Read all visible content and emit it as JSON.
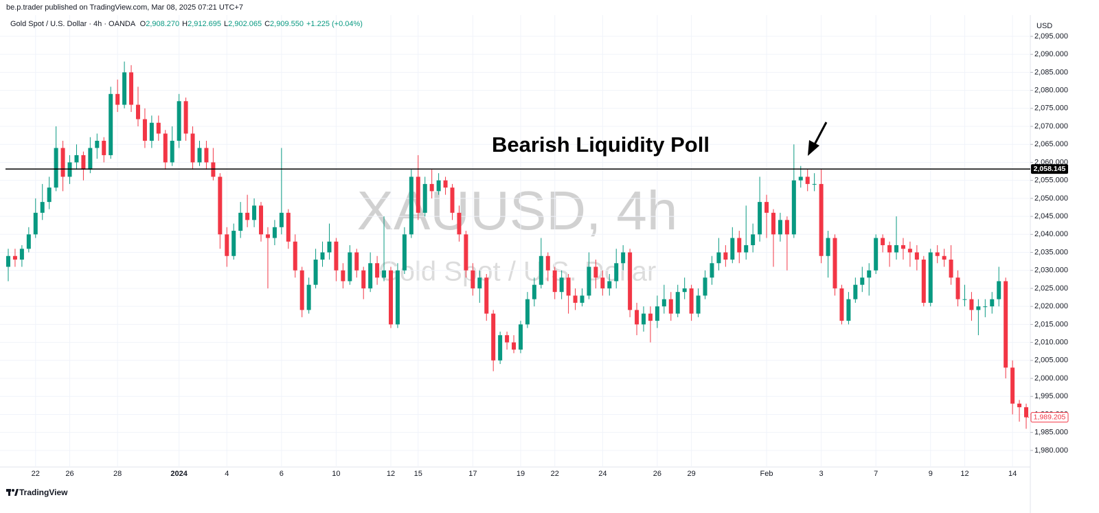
{
  "header": "be.p.trader published on TradingView.com, Mar 08, 2025 07:21 UTC+7",
  "legend": {
    "symbol": "Gold Spot / U.S. Dollar · 4h · OANDA",
    "fields": [
      {
        "label": "O",
        "value": "2,908.270"
      },
      {
        "label": "H",
        "value": "2,912.695"
      },
      {
        "label": "L",
        "value": "2,902.065"
      },
      {
        "label": "C",
        "value": "2,909.550"
      }
    ],
    "change": "+1.225 (+0.04%)"
  },
  "footer": "TradingView",
  "chart_data": {
    "type": "candlestick",
    "watermark": "XAUUSD, 4h",
    "watermark_subtitle": "Gold Spot / U.S. Dollar",
    "currency": "USD",
    "annotation": "Bearish Liquidity Poll",
    "level": {
      "value": 2058.145,
      "label": "2,058.145"
    },
    "last_price_label": "1,989.205",
    "up_color": "#089981",
    "down_color": "#f23645",
    "grid": true,
    "ylim": [
      1975.4,
      2100.9
    ],
    "yticks": [
      {
        "value": 2095,
        "label": "2,095.000"
      },
      {
        "value": 2090,
        "label": "2,090.000"
      },
      {
        "value": 2085,
        "label": "2,085.000"
      },
      {
        "value": 2080,
        "label": "2,080.000"
      },
      {
        "value": 2075,
        "label": "2,075.000"
      },
      {
        "value": 2070,
        "label": "2,070.000"
      },
      {
        "value": 2065,
        "label": "2,065.000"
      },
      {
        "value": 2060,
        "label": "2,060.000"
      },
      {
        "value": 2055,
        "label": "2,055.000"
      },
      {
        "value": 2050,
        "label": "2,050.000"
      },
      {
        "value": 2045,
        "label": "2,045.000"
      },
      {
        "value": 2040,
        "label": "2,040.000"
      },
      {
        "value": 2035,
        "label": "2,035.000"
      },
      {
        "value": 2030,
        "label": "2,030.000"
      },
      {
        "value": 2025,
        "label": "2,025.000"
      },
      {
        "value": 2020,
        "label": "2,020.000"
      },
      {
        "value": 2015,
        "label": "2,015.000"
      },
      {
        "value": 2010,
        "label": "2,010.000"
      },
      {
        "value": 2005,
        "label": "2,005.000"
      },
      {
        "value": 2000,
        "label": "2,000.000"
      },
      {
        "value": 1995,
        "label": "1,995.000"
      },
      {
        "value": 1990,
        "label": "1,990.000"
      },
      {
        "value": 1985,
        "label": "1,985.000"
      },
      {
        "value": 1980,
        "label": "1,980.000"
      }
    ],
    "categories": [
      null,
      null,
      null,
      null,
      "22",
      null,
      null,
      null,
      null,
      "26",
      null,
      null,
      null,
      null,
      null,
      null,
      "28",
      null,
      null,
      null,
      null,
      null,
      null,
      null,
      null,
      "2024",
      null,
      null,
      null,
      null,
      null,
      null,
      "4",
      null,
      null,
      null,
      null,
      null,
      null,
      null,
      "6",
      null,
      null,
      null,
      null,
      null,
      null,
      null,
      "10",
      null,
      null,
      null,
      null,
      null,
      null,
      null,
      "12",
      null,
      null,
      null,
      "15",
      null,
      null,
      null,
      null,
      null,
      null,
      null,
      "17",
      null,
      null,
      null,
      null,
      null,
      null,
      "19",
      null,
      null,
      null,
      null,
      "22",
      null,
      null,
      null,
      null,
      null,
      null,
      "24",
      null,
      null,
      null,
      null,
      null,
      null,
      null,
      "26",
      null,
      null,
      null,
      null,
      "29",
      null,
      null,
      null,
      null,
      null,
      null,
      null,
      null,
      null,
      null,
      "Feb",
      null,
      null,
      null,
      null,
      null,
      null,
      null,
      "3",
      null,
      null,
      null,
      null,
      null,
      null,
      null,
      "7",
      null,
      null,
      null,
      null,
      null,
      null,
      null,
      "9",
      null,
      null,
      null,
      null,
      "12",
      null,
      null,
      null,
      null,
      null,
      null,
      "14",
      null,
      null
    ],
    "open": [
      2031,
      2034,
      2033,
      2036,
      2040,
      2046,
      2049,
      2053,
      2064,
      2056,
      2060,
      2062,
      2058,
      2064,
      2066,
      2062,
      2079,
      2076,
      2085,
      2076,
      2072,
      2066,
      2071,
      2068,
      2060,
      2066,
      2077,
      2068,
      2060,
      2064,
      2060,
      2056,
      2040,
      2034,
      2041,
      2046,
      2044,
      2048,
      2040,
      2039,
      2042,
      2046,
      2038,
      2030,
      2019,
      2026,
      2033,
      2035,
      2038,
      2030,
      2027,
      2035,
      2030,
      2025,
      2032,
      2028,
      2030,
      2015,
      2030,
      2040,
      2056,
      2046,
      2054,
      2052,
      2055,
      2053,
      2046,
      2040,
      2030,
      2025,
      2028,
      2018,
      2005,
      2012,
      2010,
      2008,
      2015,
      2022,
      2026,
      2034,
      2030,
      2024,
      2028,
      2023,
      2021,
      2023,
      2031,
      2028,
      2025,
      2027,
      2032,
      2035,
      2019,
      2015,
      2018,
      2016,
      2020,
      2022,
      2018,
      2024,
      2025,
      2018,
      2023,
      2028,
      2032,
      2035,
      2033,
      2039,
      2035,
      2037,
      2040,
      2049,
      2046,
      2040,
      2044,
      2040,
      2055,
      2056,
      2054,
      2054,
      2034,
      2039,
      2025,
      2016,
      2022,
      2026,
      2028,
      2030,
      2039,
      2037,
      2035,
      2037,
      2036,
      2035,
      2033,
      2021,
      2035,
      2034,
      2033,
      2028,
      2022,
      2022,
      2019,
      2020,
      2020,
      2022,
      2027,
      2003,
      1993,
      1992
    ],
    "high": [
      2036,
      2036,
      2037,
      2042,
      2050,
      2054,
      2056,
      2070,
      2066,
      2062,
      2065,
      2063,
      2067,
      2068,
      2067,
      2081,
      2083,
      2088,
      2087,
      2081,
      2075,
      2073,
      2073,
      2069,
      2070,
      2079,
      2078,
      2070,
      2066,
      2066,
      2064,
      2057,
      2042,
      2043,
      2049,
      2051,
      2050,
      2049,
      2042,
      2044,
      2064,
      2047,
      2040,
      2031,
      2028,
      2036,
      2038,
      2043,
      2039,
      2032,
      2037,
      2036,
      2031,
      2035,
      2034,
      2045,
      2031,
      2032,
      2042,
      2058,
      2062,
      2056,
      2058,
      2057,
      2056,
      2054,
      2048,
      2041,
      2032,
      2030,
      2029,
      2019,
      2013,
      2013,
      2012,
      2016,
      2024,
      2028,
      2039,
      2035,
      2031,
      2030,
      2029,
      2025,
      2025,
      2035,
      2033,
      2030,
      2029,
      2036,
      2037,
      2036,
      2021,
      2020,
      2020,
      2023,
      2026,
      2024,
      2026,
      2028,
      2026,
      2025,
      2030,
      2034,
      2039,
      2037,
      2042,
      2041,
      2048,
      2043,
      2056,
      2051,
      2047,
      2046,
      2045,
      2065,
      2059,
      2058,
      2057,
      2058,
      2041,
      2040,
      2026,
      2024,
      2028,
      2031,
      2032,
      2040,
      2040,
      2038,
      2045,
      2039,
      2038,
      2037,
      2034,
      2036,
      2037,
      2036,
      2037,
      2030,
      2026,
      2024,
      2022,
      2022,
      2024,
      2031,
      2028,
      2005,
      1994,
      1993
    ],
    "low": [
      2027,
      2031,
      2031,
      2035,
      2039,
      2044,
      2047,
      2052,
      2052,
      2054,
      2058,
      2055,
      2057,
      2061,
      2060,
      2061,
      2074,
      2075,
      2074,
      2070,
      2064,
      2064,
      2066,
      2058,
      2059,
      2064,
      2066,
      2058,
      2059,
      2058,
      2055,
      2036,
      2031,
      2033,
      2039,
      2042,
      2042,
      2038,
      2025,
      2037,
      2040,
      2036,
      2028,
      2017,
      2018,
      2025,
      2031,
      2033,
      2027,
      2025,
      2026,
      2028,
      2022,
      2024,
      2026,
      2027,
      2014,
      2014,
      2029,
      2039,
      2044,
      2045,
      2050,
      2051,
      2051,
      2044,
      2038,
      2028,
      2023,
      2021,
      2016,
      2002,
      2004,
      2008,
      2007,
      2007,
      2014,
      2020,
      2025,
      2027,
      2022,
      2022,
      2018,
      2019,
      2020,
      2022,
      2025,
      2023,
      2023,
      2025,
      2030,
      2017,
      2012,
      2013,
      2010,
      2014,
      2018,
      2016,
      2017,
      2022,
      2016,
      2017,
      2022,
      2026,
      2030,
      2031,
      2032,
      2032,
      2033,
      2035,
      2038,
      2039,
      2031,
      2038,
      2030,
      2039,
      2053,
      2052,
      2052,
      2032,
      2028,
      2023,
      2015,
      2015,
      2021,
      2024,
      2023,
      2029,
      2035,
      2031,
      2033,
      2033,
      2031,
      2030,
      2020,
      2020,
      2032,
      2031,
      2026,
      2020,
      2020,
      2016,
      2012,
      2017,
      2018,
      2020,
      2000,
      1990,
      1988,
      1986
    ],
    "close": [
      2034,
      2033,
      2036,
      2040,
      2046,
      2049,
      2053,
      2064,
      2056,
      2060,
      2062,
      2058,
      2064,
      2066,
      2062,
      2079,
      2076,
      2085,
      2076,
      2072,
      2066,
      2071,
      2068,
      2060,
      2066,
      2077,
      2068,
      2060,
      2064,
      2060,
      2056,
      2040,
      2034,
      2041,
      2046,
      2044,
      2048,
      2040,
      2039,
      2042,
      2046,
      2038,
      2030,
      2019,
      2026,
      2033,
      2035,
      2038,
      2030,
      2027,
      2035,
      2030,
      2025,
      2032,
      2028,
      2030,
      2015,
      2030,
      2040,
      2056,
      2046,
      2054,
      2052,
      2055,
      2053,
      2046,
      2040,
      2030,
      2025,
      2028,
      2018,
      2005,
      2012,
      2010,
      2008,
      2015,
      2022,
      2026,
      2034,
      2030,
      2024,
      2028,
      2023,
      2021,
      2023,
      2031,
      2028,
      2025,
      2027,
      2032,
      2035,
      2019,
      2015,
      2018,
      2016,
      2020,
      2022,
      2018,
      2024,
      2025,
      2018,
      2023,
      2028,
      2032,
      2035,
      2033,
      2039,
      2035,
      2037,
      2040,
      2049,
      2046,
      2040,
      2044,
      2040,
      2055,
      2056,
      2054,
      2054,
      2034,
      2039,
      2025,
      2016,
      2022,
      2026,
      2028,
      2030,
      2039,
      2037,
      2035,
      2037,
      2036,
      2035,
      2033,
      2021,
      2035,
      2034,
      2033,
      2028,
      2022,
      2022,
      2019,
      2020,
      2020,
      2022,
      2027,
      2003,
      1993,
      1992,
      1989.205
    ]
  }
}
